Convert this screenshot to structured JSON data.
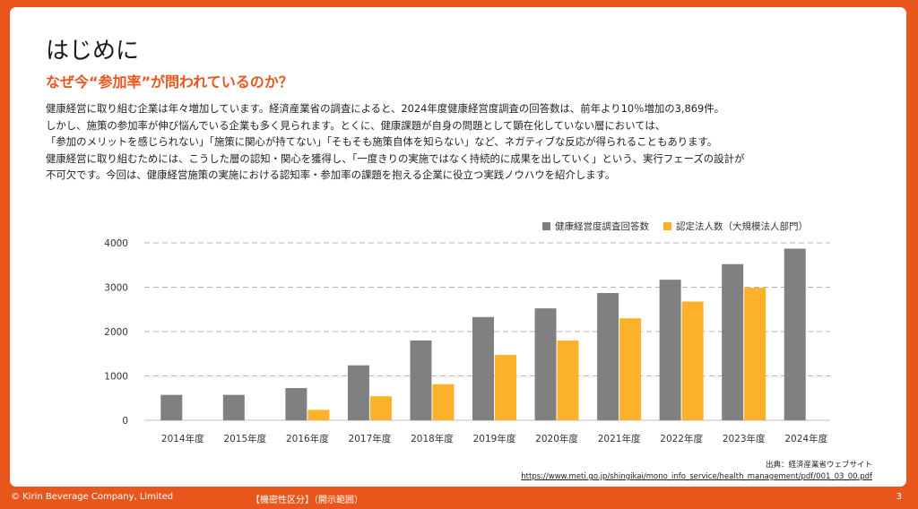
{
  "slide": {
    "title": "はじめに",
    "subtitle": "なぜ今“参加率”が問われているのか？",
    "body_lines": [
      "健康経営に取り組む企業は年々増加しています。経済産業省の調査によると、2024年度健康経営度調査の回答数は、前年より10％増加の3,869件。",
      "しかし、施策の参加率が伸び悩んでいる企業も多く見られます。とくに、健康課題が自身の問題として顕在化していない層においては、",
      "「参加のメリットを感じられない」「施策に関心が持てない」「そもそも施策自体を知らない」など、ネガティブな反応が得られることもあります。",
      "健康経営に取り組むためには、こうした層の認知・関心を獲得し、「一度きりの実施ではなく持続的に成果を出していく」という、実行フェーズの設計が",
      "不可欠です。今回は、健康経営施策の実施における認知率・参加率の課題を抱える企業に役立つ実践ノウハウを紹介します。"
    ],
    "source_label": "出典：経済産業省ウェブサイト",
    "source_url": "https://www.meti.go.jp/shingikai/mono_info_service/health_management/pdf/001_03_00.pdf"
  },
  "footer": {
    "copyright": "© Kirin Beverage Company, Limited",
    "classification": "【機密性区分】（開示範囲）",
    "page_number": "3"
  },
  "colors": {
    "accent": "#E9561C",
    "series_gray": "#808080",
    "series_orange": "#FBB12A"
  },
  "chart_data": {
    "type": "bar",
    "categories": [
      "2014年度",
      "2015年度",
      "2016年度",
      "2017年度",
      "2018年度",
      "2019年度",
      "2020年度",
      "2021年度",
      "2022年度",
      "2023年度",
      "2024年度"
    ],
    "series": [
      {
        "name": "健康経営度調査回答数",
        "color": "#808080",
        "values": [
          573,
          573,
          726,
          1239,
          1800,
          2328,
          2523,
          2869,
          3169,
          3520,
          3869
        ]
      },
      {
        "name": "認定法人数（大規模法人部門）",
        "color": "#FBB12A",
        "values": [
          null,
          null,
          235,
          541,
          814,
          1473,
          1800,
          2299,
          2676,
          2988,
          null
        ]
      }
    ],
    "ylim": [
      0,
      4000
    ],
    "yticks": [
      0,
      1000,
      2000,
      3000,
      4000
    ],
    "grid": true,
    "legend": "top-right"
  }
}
